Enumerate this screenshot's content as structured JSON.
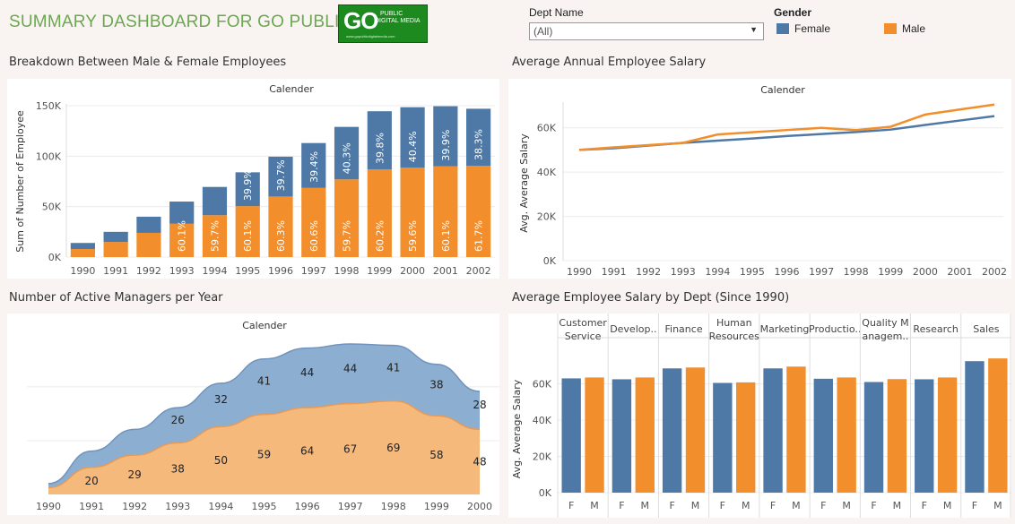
{
  "header": {
    "title": "SUMMARY DASHBOARD FOR GO PUBLIC",
    "logo_big": "GO",
    "logo_line1": "PUBLIC",
    "logo_line2": "DIGITAL MEDIA",
    "logo_url": "www.gopublicdigitalmedia.com"
  },
  "filters": {
    "dept_label": "Dept Name",
    "dept_value": "(All)"
  },
  "legend": {
    "title": "Gender",
    "items": [
      {
        "label": "Female",
        "color": "#4e79a7"
      },
      {
        "label": "Male",
        "color": "#f28e2b"
      }
    ]
  },
  "colors": {
    "female": "#4e79a7",
    "male": "#f28e2b",
    "female_area": "#8caed0",
    "male_area": "#f6b97c"
  },
  "chart_data": [
    {
      "id": "gender-breakdown",
      "type": "bar",
      "title": "Breakdown Between Male & Female Employees",
      "header": "Calender",
      "ylabel": "Sum of Number of Employee",
      "ylim": [
        0,
        150000
      ],
      "yticks": [
        "0K",
        "50K",
        "100K",
        "150K"
      ],
      "ytick_values": [
        0,
        50000,
        100000,
        150000
      ],
      "categories": [
        "1990",
        "1991",
        "1992",
        "1993",
        "1994",
        "1995",
        "1996",
        "1997",
        "1998",
        "1999",
        "2000",
        "2001",
        "2002"
      ],
      "series": [
        {
          "name": "Male",
          "values": [
            8000,
            15000,
            24000,
            33000,
            41500,
            50500,
            60000,
            68500,
            77000,
            87000,
            88500,
            90000,
            90500
          ]
        },
        {
          "name": "Female",
          "values": [
            6000,
            10000,
            16000,
            22000,
            28000,
            33500,
            39500,
            44500,
            52000,
            57500,
            60000,
            59500,
            56500
          ]
        }
      ],
      "male_labels": [
        "",
        "",
        "",
        "60.1%",
        "59.7%",
        "60.1%",
        "60.3%",
        "60.6%",
        "59.7%",
        "60.2%",
        "59.6%",
        "60.1%",
        "61.7%"
      ],
      "female_labels": [
        "",
        "",
        "",
        "",
        "",
        "39.9%",
        "39.7%",
        "39.4%",
        "40.3%",
        "39.8%",
        "40.4%",
        "39.9%",
        "38.3%"
      ]
    },
    {
      "id": "avg-annual-salary",
      "type": "line",
      "title": "Average Annual Employee Salary",
      "header": "Calender",
      "ylabel": "Avg. Average Salary",
      "ylim": [
        0,
        70000
      ],
      "yticks": [
        "0K",
        "20K",
        "40K",
        "60K"
      ],
      "ytick_values": [
        0,
        20000,
        40000,
        60000
      ],
      "categories": [
        "1990",
        "1991",
        "1992",
        "1993",
        "1994",
        "1995",
        "1996",
        "1997",
        "1998",
        "1999",
        "2000",
        "2001",
        "2002"
      ],
      "series": [
        {
          "name": "Female",
          "values": [
            50000,
            50800,
            52000,
            53200,
            54200,
            55200,
            56300,
            57200,
            58100,
            59200,
            61300,
            63300,
            65300
          ]
        },
        {
          "name": "Male",
          "values": [
            50000,
            51200,
            52200,
            53200,
            57000,
            58000,
            59000,
            60000,
            59000,
            60500,
            66000,
            68300,
            70500
          ]
        }
      ]
    },
    {
      "id": "active-managers",
      "type": "area",
      "title": "Number of Active Managers per Year",
      "header": "Calender",
      "categories": [
        "1990",
        "1991",
        "1992",
        "1993",
        "1994",
        "1995",
        "1996",
        "1997",
        "1998",
        "1999",
        "2000"
      ],
      "series": [
        {
          "name": "Male",
          "values": [
            5,
            20,
            29,
            38,
            50,
            59,
            64,
            67,
            69,
            58,
            48
          ]
        },
        {
          "name": "Female",
          "values": [
            3,
            12,
            19,
            26,
            32,
            41,
            44,
            44,
            41,
            38,
            28
          ]
        }
      ],
      "male_labels": [
        "",
        "20",
        "29",
        "38",
        "50",
        "59",
        "64",
        "67",
        "69",
        "58",
        "48"
      ],
      "female_labels": [
        "",
        "",
        "",
        "26",
        "32",
        "41",
        "44",
        "44",
        "41",
        "38",
        "28"
      ]
    },
    {
      "id": "salary-by-dept",
      "type": "bar",
      "title": "Average Employee Salary by Dept (Since 1990)",
      "ylabel": "Avg. Average Salary",
      "ylim": [
        0,
        80000
      ],
      "yticks": [
        "0K",
        "20K",
        "40K",
        "60K"
      ],
      "ytick_values": [
        0,
        20000,
        40000,
        60000
      ],
      "departments": [
        {
          "name": "Customer Service",
          "label_lines": [
            "Customer",
            "Service"
          ],
          "female": 63000,
          "male": 63500
        },
        {
          "name": "Development",
          "label_lines": [
            "Develop.."
          ],
          "female": 62500,
          "male": 63500
        },
        {
          "name": "Finance",
          "label_lines": [
            "Finance"
          ],
          "female": 68500,
          "male": 69000
        },
        {
          "name": "Human Resources",
          "label_lines": [
            "Human",
            "Resources"
          ],
          "female": 60500,
          "male": 60800
        },
        {
          "name": "Marketing",
          "label_lines": [
            "Marketing"
          ],
          "female": 68500,
          "male": 69500
        },
        {
          "name": "Production",
          "label_lines": [
            "Productio.."
          ],
          "female": 62800,
          "male": 63500
        },
        {
          "name": "Quality Management",
          "label_lines": [
            "Quality M",
            "anagem.."
          ],
          "female": 61000,
          "male": 62600
        },
        {
          "name": "Research",
          "label_lines": [
            "Research"
          ],
          "female": 62500,
          "male": 63500
        },
        {
          "name": "Sales",
          "label_lines": [
            "Sales"
          ],
          "female": 72500,
          "male": 74000
        }
      ],
      "gender_ticks": [
        "F",
        "M"
      ]
    }
  ]
}
